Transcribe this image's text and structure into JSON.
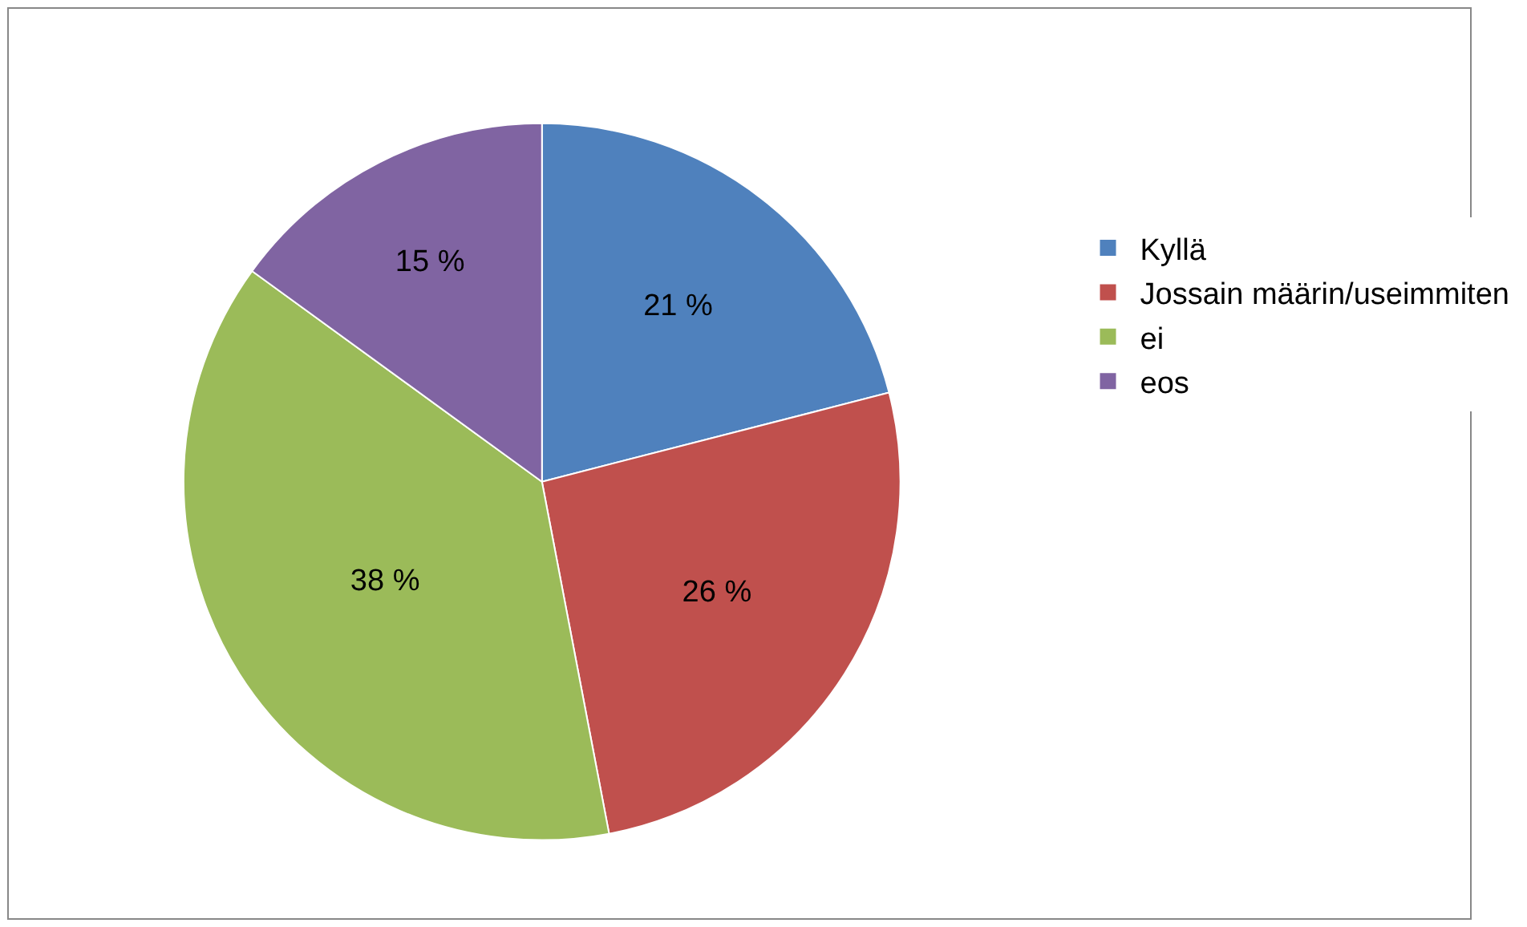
{
  "chart_data": {
    "type": "pie",
    "categories": [
      "Kyllä",
      "Jossain määrin/useimmiten",
      "ei",
      "eos"
    ],
    "values": [
      21,
      26,
      38,
      15
    ],
    "colors": [
      "#4f81bd",
      "#c0504d",
      "#9bbb59",
      "#8064a2"
    ],
    "value_labels": [
      "21 %",
      "26 %",
      "38 %",
      "15 %"
    ],
    "legend": "right"
  }
}
